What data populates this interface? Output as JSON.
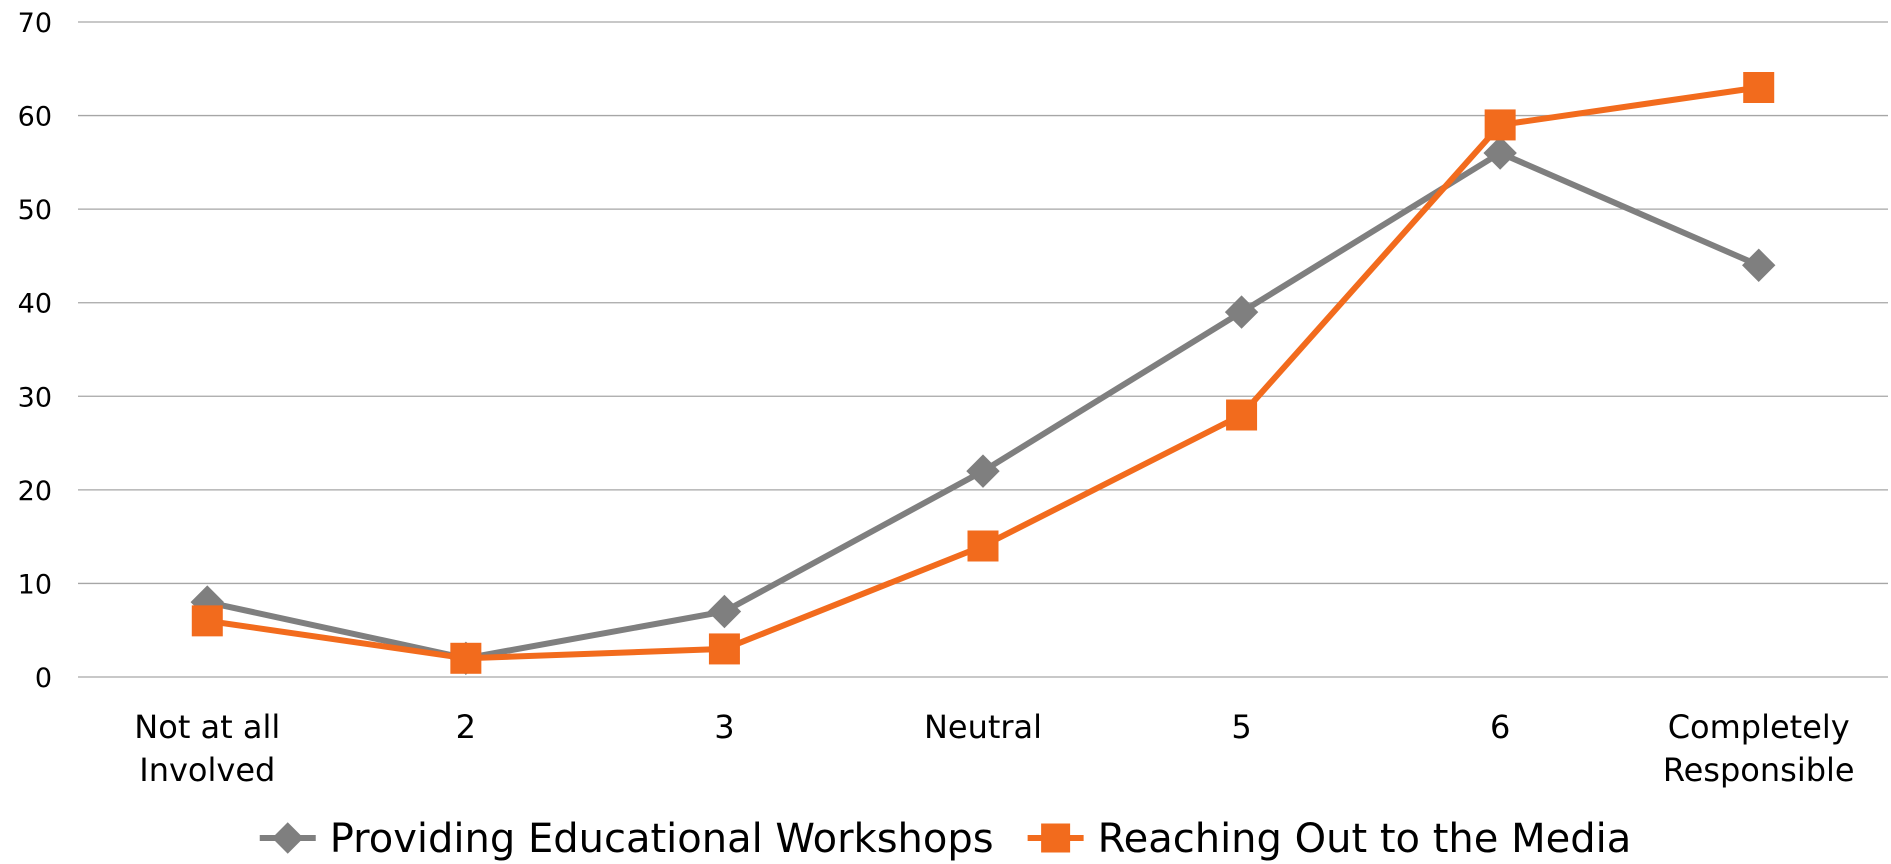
{
  "chart_data": {
    "type": "line",
    "categories": [
      [
        "Not at all",
        "Involved"
      ],
      [
        "2"
      ],
      [
        "3"
      ],
      [
        "Neutral"
      ],
      [
        "5"
      ],
      [
        "6"
      ],
      [
        "Completely",
        "Responsible"
      ]
    ],
    "ylim": [
      0,
      70
    ],
    "yticks": [
      "0",
      "10",
      "20",
      "30",
      "40",
      "50",
      "60",
      "70"
    ],
    "grid": true,
    "legend_position": "bottom",
    "series": [
      {
        "name": "Providing Educational Workshops",
        "color": "#7f7f7f",
        "marker": "diamond",
        "values": [
          8,
          2,
          7,
          22,
          39,
          56,
          44
        ]
      },
      {
        "name": "Reaching Out to the Media",
        "color": "#f26b1d",
        "marker": "square",
        "values": [
          6,
          2,
          3,
          14,
          28,
          59,
          63
        ]
      }
    ]
  }
}
